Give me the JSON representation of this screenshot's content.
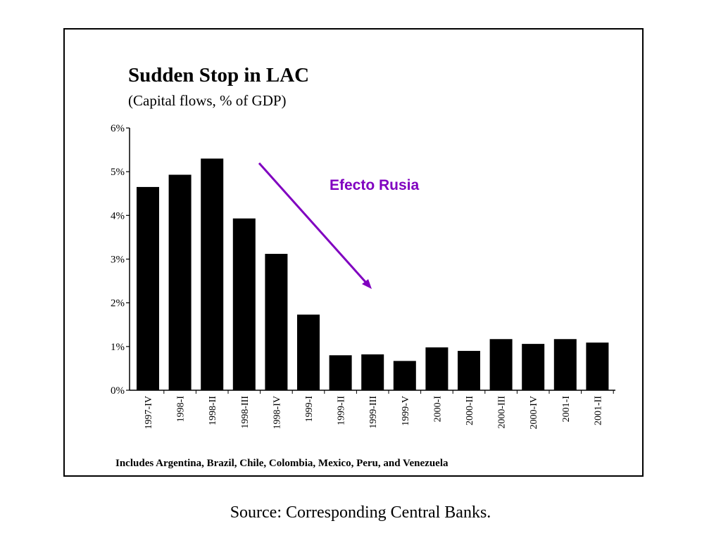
{
  "chart_data": {
    "type": "bar",
    "title": "Sudden Stop in LAC",
    "subtitle": "(Capital flows, % of GDP)",
    "categories": [
      "1997-IV",
      "1998-I",
      "1998-II",
      "1998-III",
      "1998-IV",
      "1999-I",
      "1999-II",
      "1999-III",
      "1999-V",
      "2000-I",
      "2000-II",
      "2000-III",
      "2000-IV",
      "2001-I",
      "2001-II"
    ],
    "values": [
      4.65,
      4.93,
      5.3,
      3.93,
      3.12,
      1.73,
      0.8,
      0.82,
      0.67,
      0.98,
      0.9,
      1.17,
      1.06,
      1.17,
      1.09
    ],
    "ylim": [
      0,
      6
    ],
    "yticks": [
      0,
      1,
      2,
      3,
      4,
      5,
      6
    ],
    "ytick_labels": [
      "0%",
      "1%",
      "2%",
      "3%",
      "4%",
      "5%",
      "6%"
    ],
    "bar_color": "#000000",
    "grid": false,
    "annotation": {
      "text": "Efecto Rusia",
      "color": "#8000c0",
      "style": "arrow pointing down-right across the drop from 1998-II to 1999-III"
    },
    "footnote": "Includes Argentina, Brazil, Chile, Colombia, Mexico, Peru, and Venezuela"
  },
  "source": "Source: Corresponding Central Banks."
}
